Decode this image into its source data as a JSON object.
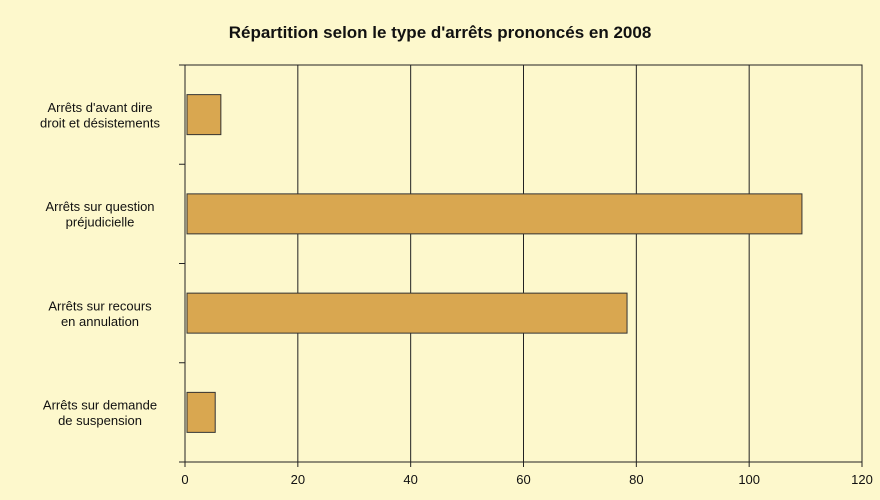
{
  "chart_data": {
    "type": "barh",
    "title": "Répartition selon le type d'arrêts prononcés en 2008",
    "categories": [
      "Arrêts d'avant dire\ndroit et désistements",
      "Arrêts sur question\npréjudicielle",
      "Arrêts sur recours\nen annulation",
      "Arrêts sur demande\nde suspension"
    ],
    "values": [
      6,
      109,
      78,
      5
    ],
    "color": "#d9a750",
    "xlim": [
      0,
      120
    ],
    "xticks": [
      0,
      20,
      40,
      60,
      80,
      100,
      120
    ],
    "grid": true
  }
}
